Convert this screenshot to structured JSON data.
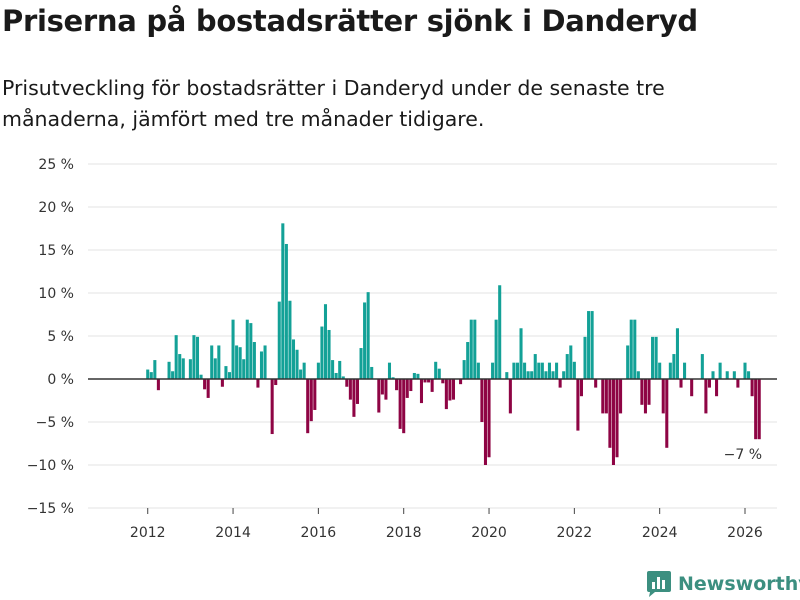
{
  "colors": {
    "positive": "#13a197",
    "negative": "#8e0444",
    "grid": "#e3e3e3",
    "zero": "#333333",
    "brand": "#3c8f80"
  },
  "brand": {
    "name": "Newsworthy",
    "icon": "bar-chart-logo-icon"
  },
  "chart_data": {
    "type": "bar",
    "title": "Priserna på bostadsrätter sjönk i Danderyd",
    "subtitle": "Prisutveckling för bostadsrätter i Danderyd under de senaste tre månaderna, jämfört med tre månader tidigare.",
    "xlabel": "",
    "ylabel": "",
    "grid": true,
    "x_start": 2012,
    "x_step": 0.0833333,
    "xlim": [
      2010.6,
      2026.75
    ],
    "ylim": [
      -15,
      25
    ],
    "yticks": [
      -15,
      -10,
      -5,
      0,
      5,
      10,
      15,
      20,
      25
    ],
    "ytick_labels": [
      "−15 %",
      "−10 %",
      "−5 %",
      "0 %",
      "5 %",
      "10 %",
      "15 %",
      "20 %",
      "25 %"
    ],
    "xticks": [
      2012,
      2014,
      2016,
      2018,
      2020,
      2022,
      2024,
      2026
    ],
    "xtick_labels": [
      "2012",
      "2014",
      "2016",
      "2018",
      "2020",
      "2022",
      "2024",
      "2026"
    ],
    "annotation": {
      "text": "−7 %",
      "x": 2025.95,
      "y": -9.3
    },
    "values": [
      1.1,
      0.8,
      2.2,
      -1.3,
      0,
      0,
      2.0,
      0.9,
      5.1,
      2.9,
      2.4,
      0,
      2.3,
      5.1,
      4.9,
      0.5,
      -1.2,
      -2.2,
      3.9,
      2.4,
      3.9,
      -0.9,
      1.5,
      0.8,
      6.9,
      3.9,
      3.7,
      2.3,
      6.9,
      6.5,
      4.3,
      -1.0,
      3.2,
      3.9,
      0,
      -6.4,
      -0.7,
      9.0,
      18.1,
      15.7,
      9.1,
      4.6,
      3.4,
      1.1,
      1.9,
      -6.3,
      -4.9,
      -3.6,
      1.9,
      6.1,
      8.7,
      5.7,
      2.2,
      0.7,
      2.1,
      0.3,
      -0.9,
      -2.4,
      -4.4,
      -2.9,
      3.6,
      8.9,
      10.1,
      1.4,
      0,
      -3.9,
      -1.8,
      -2.4,
      1.9,
      0.2,
      -1.3,
      -5.8,
      -6.3,
      -2.2,
      -1.4,
      0.7,
      0.6,
      -2.8,
      -0.4,
      -0.4,
      -1.5,
      2.0,
      1.2,
      -0.5,
      -3.5,
      -2.5,
      -2.4,
      0,
      -0.6,
      2.2,
      4.3,
      6.9,
      6.9,
      1.9,
      -5.0,
      -10.0,
      -9.1,
      1.9,
      6.9,
      10.9,
      0,
      0.8,
      -4.0,
      1.9,
      1.9,
      5.9,
      1.9,
      0.9,
      0.9,
      2.9,
      1.9,
      1.9,
      0.9,
      1.9,
      0.9,
      1.9,
      -1.0,
      0.9,
      2.9,
      3.9,
      2.0,
      -6.0,
      -2.0,
      4.9,
      7.9,
      7.9,
      -1.0,
      0,
      -4.0,
      -4.0,
      -8.0,
      -10.0,
      -9.1,
      -4.0,
      0,
      3.9,
      6.9,
      6.9,
      0.9,
      -3.0,
      -4.0,
      -3.0,
      4.9,
      4.9,
      1.9,
      -4.0,
      -8.0,
      1.9,
      2.9,
      5.9,
      -1.0,
      1.9,
      0,
      -2.0,
      0,
      0,
      2.9,
      -4.0,
      -1.0,
      0.9,
      -2.0,
      1.9,
      0,
      0.9,
      0,
      0.9,
      -1.0,
      0,
      1.9,
      0.9,
      -2.0,
      -7.0,
      -7.0
    ]
  }
}
